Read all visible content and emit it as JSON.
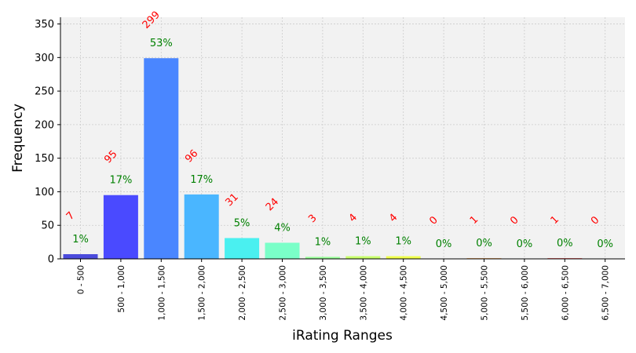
{
  "chart_data": {
    "type": "bar",
    "title": "",
    "xlabel": "iRating Ranges",
    "ylabel": "Frequency",
    "ylim": [
      0,
      360
    ],
    "yticks": [
      0,
      50,
      100,
      150,
      200,
      250,
      300,
      350
    ],
    "grid": true,
    "categories": [
      "0 - 500",
      "500 - 1,000",
      "1,000 - 1,500",
      "1,500 - 2,000",
      "2,000 - 2,500",
      "2,500 - 3,000",
      "3,000 - 3,500",
      "3,500 - 4,000",
      "4,000 - 4,500",
      "4,500 - 5,000",
      "5,000 - 5,500",
      "5,500 - 6,000",
      "6,000 - 6,500",
      "6,500 - 7,000"
    ],
    "values": [
      7,
      95,
      299,
      96,
      31,
      24,
      3,
      4,
      4,
      0,
      1,
      0,
      1,
      0
    ],
    "count_labels": [
      "7",
      "95",
      "299",
      "96",
      "31",
      "24",
      "3",
      "4",
      "4",
      "0",
      "1",
      "0",
      "1",
      "0"
    ],
    "percent_labels": [
      "1%",
      "17%",
      "53%",
      "17%",
      "5%",
      "4%",
      "1%",
      "1%",
      "1%",
      "0%",
      "0%",
      "0%",
      "0%",
      "0%"
    ],
    "colors": [
      "#4b4bdc",
      "#4a4aff",
      "#4a86ff",
      "#4ab6ff",
      "#4af0f0",
      "#7affc8",
      "#98ff98",
      "#c8ff6a",
      "#f0ff4a",
      "#ffd24a",
      "#ffa04a",
      "#ff7a4a",
      "#ff4a4a",
      "#dc4a4a"
    ],
    "background_color": "#f2f2f2",
    "count_label_color": "#ff0000",
    "percent_label_color": "#008000"
  }
}
